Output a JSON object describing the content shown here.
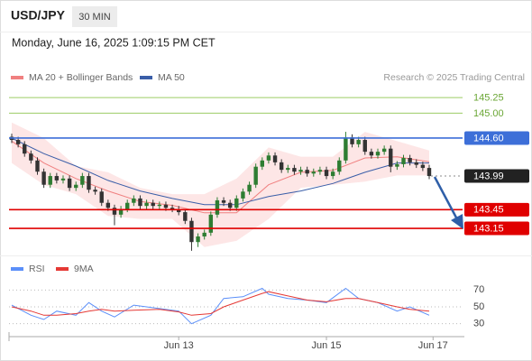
{
  "header": {
    "symbol": "USD/JPY",
    "timeframe": "30 MIN",
    "datetime": "Monday, June 16, 2025 1:09:15 PM CET"
  },
  "chart_data": [
    {
      "type": "candlestick",
      "source": "Research © 2025 Trading Central",
      "ylim": [
        142.73,
        145.44
      ],
      "up_color": "#2e7d32",
      "down_color": "#333333",
      "open": [
        144.62,
        144.57,
        144.5,
        144.35,
        144.24,
        144.06,
        143.85,
        143.99,
        143.92,
        143.95,
        143.8,
        143.85,
        143.99,
        143.77,
        143.74,
        143.56,
        143.48,
        143.37,
        143.46,
        143.56,
        143.63,
        143.51,
        143.56,
        143.51,
        143.53,
        143.48,
        143.46,
        143.41,
        143.27,
        142.93,
        143.02,
        143.08,
        143.37,
        143.6,
        143.56,
        143.48,
        143.63,
        143.74,
        143.85,
        144.14,
        144.24,
        144.32,
        144.21,
        144.09,
        144.12,
        144.06,
        144.09,
        144.03,
        144.06,
        144.09,
        143.99,
        144.06,
        144.24,
        144.61,
        144.5,
        144.57,
        144.38,
        144.32,
        144.38,
        144.43,
        144.14,
        144.18,
        144.28,
        144.21,
        144.17,
        144.12
      ],
      "high": [
        144.67,
        144.62,
        144.55,
        144.4,
        144.29,
        144.11,
        144.04,
        144.04,
        144.0,
        144.0,
        143.9,
        144.04,
        144.04,
        143.82,
        143.79,
        143.61,
        143.53,
        143.51,
        143.61,
        143.68,
        143.68,
        143.61,
        143.61,
        143.58,
        143.58,
        143.53,
        143.51,
        143.46,
        143.32,
        143.07,
        143.13,
        143.42,
        143.65,
        143.65,
        143.61,
        143.68,
        143.79,
        143.9,
        144.19,
        144.29,
        144.37,
        144.37,
        144.26,
        144.17,
        144.17,
        144.14,
        144.14,
        144.11,
        144.14,
        144.14,
        144.11,
        144.29,
        144.7,
        144.66,
        144.62,
        144.62,
        144.43,
        144.43,
        144.48,
        144.48,
        144.23,
        144.33,
        144.33,
        144.26,
        144.22,
        144.17
      ],
      "low": [
        144.52,
        144.45,
        144.3,
        144.19,
        144.01,
        143.8,
        143.8,
        143.87,
        143.87,
        143.75,
        143.75,
        143.8,
        143.72,
        143.69,
        143.51,
        143.43,
        143.2,
        143.32,
        143.41,
        143.51,
        143.46,
        143.46,
        143.46,
        143.46,
        143.43,
        143.41,
        143.36,
        143.22,
        142.79,
        142.85,
        142.97,
        143.03,
        143.32,
        143.51,
        143.43,
        143.43,
        143.58,
        143.69,
        143.8,
        144.09,
        144.19,
        144.16,
        144.04,
        144.04,
        144.01,
        144.01,
        143.98,
        143.98,
        144.01,
        143.94,
        143.94,
        144.01,
        144.19,
        144.45,
        144.45,
        144.33,
        144.27,
        144.27,
        144.33,
        144.05,
        144.09,
        144.13,
        144.16,
        144.12,
        144.07,
        143.94
      ],
      "close": [
        144.57,
        144.5,
        144.35,
        144.24,
        144.06,
        143.85,
        143.99,
        143.92,
        143.95,
        143.8,
        143.85,
        143.99,
        143.77,
        143.74,
        143.56,
        143.48,
        143.37,
        143.46,
        143.56,
        143.63,
        143.51,
        143.56,
        143.51,
        143.53,
        143.48,
        143.46,
        143.41,
        143.27,
        142.93,
        143.02,
        143.08,
        143.37,
        143.6,
        143.56,
        143.48,
        143.63,
        143.74,
        143.85,
        144.14,
        144.24,
        144.32,
        144.21,
        144.09,
        144.12,
        144.06,
        144.09,
        144.03,
        144.06,
        144.09,
        143.99,
        144.06,
        144.24,
        144.61,
        144.5,
        144.57,
        144.38,
        144.32,
        144.38,
        144.43,
        144.14,
        144.18,
        144.28,
        144.21,
        144.17,
        144.12,
        143.99
      ],
      "series": [
        {
          "name": "MA 20 + Bollinger Bands",
          "color": "#f08080",
          "band_color": "#fde0e0",
          "x": [
            0,
            5,
            10,
            15,
            20,
            25,
            30,
            35,
            40,
            45,
            50,
            55,
            60,
            65
          ],
          "values": [
            144.55,
            144.2,
            143.95,
            143.75,
            143.58,
            143.52,
            143.4,
            143.4,
            143.85,
            144.05,
            144.08,
            144.28,
            144.3,
            144.22
          ],
          "upper": [
            144.85,
            144.6,
            144.15,
            144.05,
            143.8,
            143.7,
            143.7,
            143.95,
            144.45,
            144.3,
            144.3,
            144.7,
            144.55,
            144.4
          ],
          "lower": [
            144.2,
            143.85,
            143.7,
            143.35,
            143.3,
            143.3,
            142.85,
            142.95,
            143.3,
            143.8,
            143.85,
            143.9,
            144.0,
            144.0
          ]
        },
        {
          "name": "MA 50",
          "color": "#3a5ea8",
          "x": [
            0,
            5,
            10,
            15,
            20,
            25,
            30,
            35,
            40,
            45,
            50,
            55,
            60,
            65
          ],
          "values": [
            144.6,
            144.35,
            144.15,
            143.92,
            143.75,
            143.63,
            143.53,
            143.53,
            143.66,
            143.75,
            143.87,
            144.05,
            144.2,
            144.2
          ]
        }
      ],
      "levels": [
        {
          "value": 145.25,
          "color": "#9ccc65",
          "filled": false
        },
        {
          "value": 145,
          "label": "145.00",
          "color": "#9ccc65",
          "filled": false
        },
        {
          "value": 144.6,
          "label": "144.60",
          "color": "#3d6fd8",
          "filled": true
        },
        {
          "value": 143.45,
          "color": "#e00000",
          "filled": true
        },
        {
          "value": 143.15,
          "color": "#e00000",
          "filled": true
        },
        {
          "value": 143.99,
          "color": "#222222",
          "filled": true,
          "dashed": true
        }
      ]
    },
    {
      "type": "line",
      "ylim": [
        20,
        80
      ],
      "yticks": [
        70,
        50,
        30
      ],
      "grid": true,
      "xlim": [
        0,
        65
      ],
      "xticks": [
        {
          "value": 26,
          "label": "Jun 13"
        },
        {
          "value": 49,
          "label": "Jun 15"
        },
        {
          "value": 65.6,
          "label": "Jun 17"
        }
      ],
      "series": [
        {
          "name": "RSI",
          "color": "#5b8ff9",
          "x": [
            0,
            3,
            5,
            7,
            10,
            12,
            14,
            16,
            19,
            23,
            26,
            28,
            31,
            33,
            36,
            39,
            40,
            43,
            46,
            49,
            52,
            54,
            57,
            60,
            62,
            65
          ],
          "values": [
            52,
            40,
            35,
            45,
            40,
            55,
            45,
            38,
            52,
            48,
            45,
            30,
            40,
            60,
            62,
            72,
            65,
            60,
            58,
            55,
            72,
            60,
            55,
            45,
            50,
            40
          ]
        },
        {
          "name": "9MA",
          "color": "#e53935",
          "x": [
            0,
            3,
            5,
            7,
            10,
            12,
            14,
            16,
            19,
            23,
            26,
            28,
            31,
            33,
            36,
            39,
            40,
            43,
            46,
            49,
            52,
            54,
            57,
            60,
            62,
            65
          ],
          "values": [
            50,
            45,
            40,
            40,
            42,
            45,
            47,
            45,
            46,
            47,
            44,
            40,
            42,
            50,
            58,
            66,
            68,
            63,
            58,
            56,
            60,
            60,
            55,
            50,
            47,
            45
          ]
        }
      ]
    }
  ]
}
